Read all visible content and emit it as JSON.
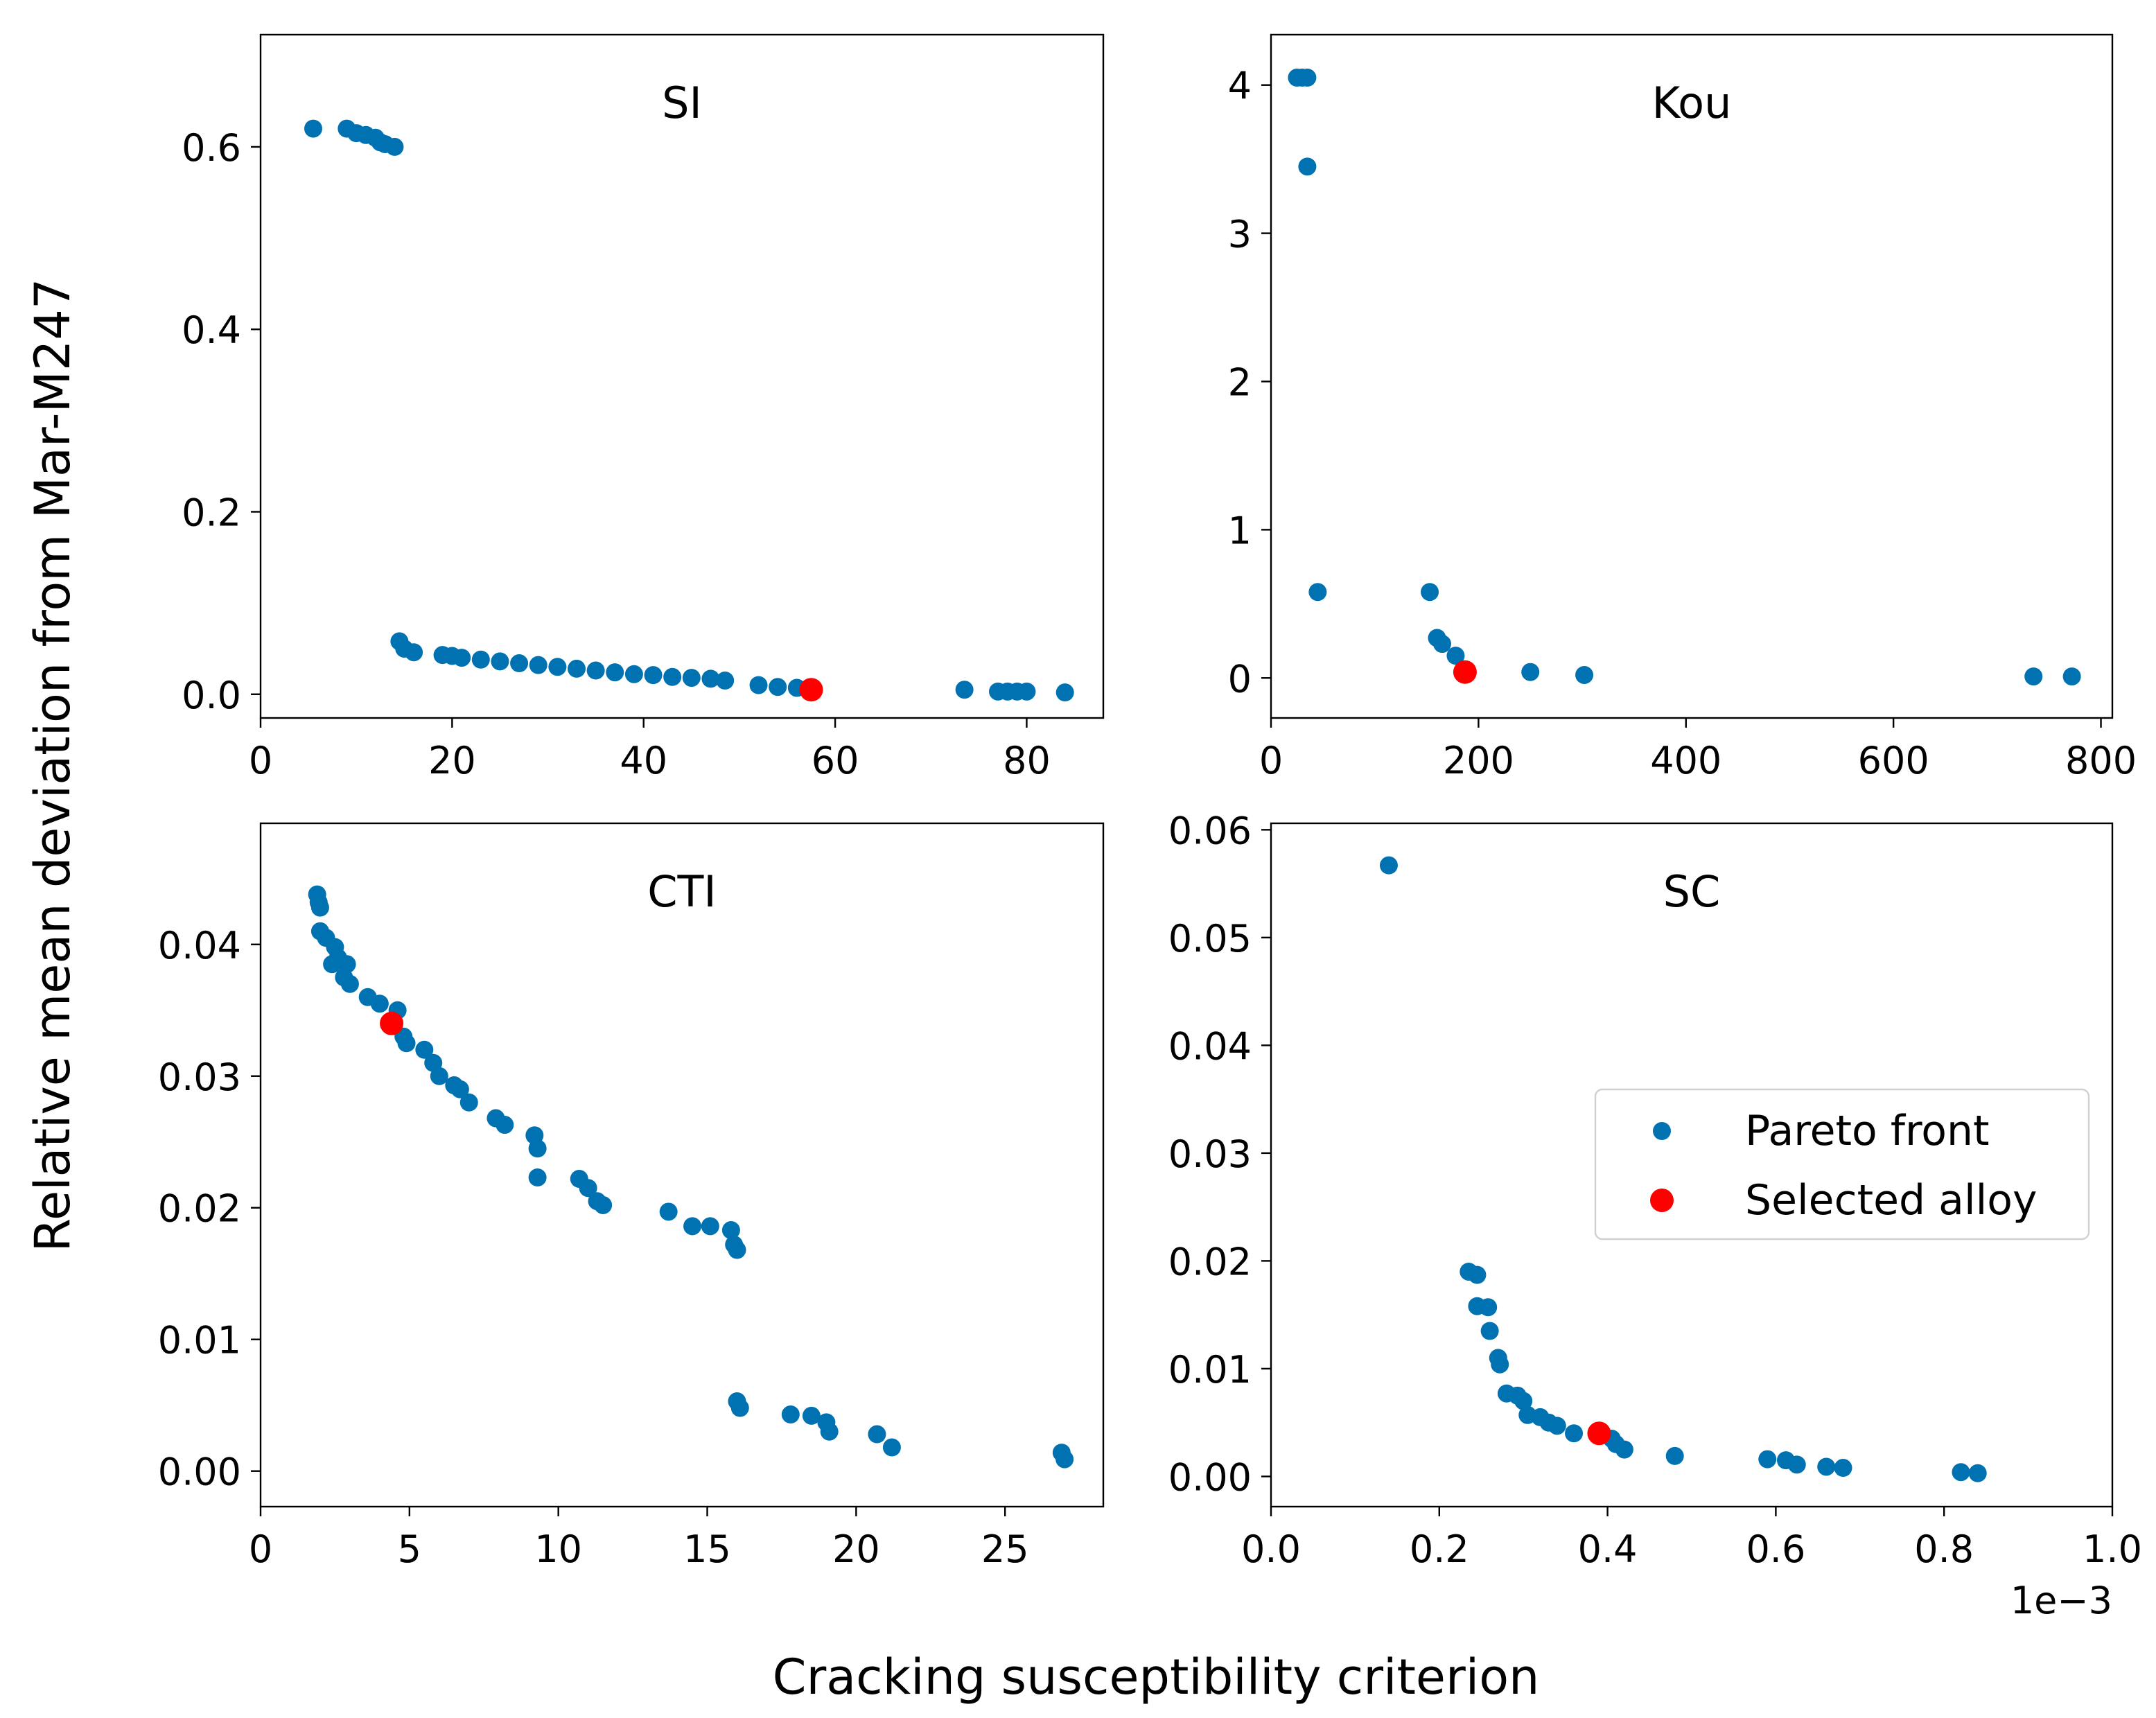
{
  "chart_data": {
    "type": "scatter",
    "ylabel": "Relative mean deviation from Mar-M247",
    "xlabel": "Cracking susceptibility criterion",
    "legend": {
      "placement": "center-right of SC panel",
      "entries": [
        {
          "label": "Pareto front",
          "color": "#0072b2"
        },
        {
          "label": "Selected alloy",
          "color": "#ff0000"
        }
      ]
    },
    "colors": {
      "pareto": "#0072b2",
      "selected": "#ff0000"
    },
    "panels": [
      {
        "title": "SI",
        "xlim": [
          0,
          88
        ],
        "ylim": [
          -0.026,
          0.723
        ],
        "xticks": [
          0,
          20,
          40,
          60,
          80
        ],
        "xtick_labels": [
          "0",
          "20",
          "40",
          "60",
          "80"
        ],
        "yticks": [
          0.0,
          0.2,
          0.4,
          0.6
        ],
        "ytick_labels": [
          "0.0",
          "0.2",
          "0.4",
          "0.6"
        ],
        "pareto": [
          [
            5.5,
            0.62
          ],
          [
            9,
            0.62
          ],
          [
            10,
            0.615
          ],
          [
            11,
            0.613
          ],
          [
            12,
            0.61
          ],
          [
            12.5,
            0.605
          ],
          [
            13,
            0.603
          ],
          [
            14,
            0.6
          ],
          [
            14.5,
            0.058
          ],
          [
            15,
            0.05
          ],
          [
            16,
            0.046
          ],
          [
            19,
            0.043
          ],
          [
            20,
            0.042
          ],
          [
            21,
            0.04
          ],
          [
            23,
            0.038
          ],
          [
            25,
            0.036
          ],
          [
            27,
            0.034
          ],
          [
            29,
            0.032
          ],
          [
            31,
            0.03
          ],
          [
            33,
            0.028
          ],
          [
            35,
            0.026
          ],
          [
            37,
            0.024
          ],
          [
            39,
            0.022
          ],
          [
            41,
            0.021
          ],
          [
            43,
            0.019
          ],
          [
            45,
            0.018
          ],
          [
            47,
            0.017
          ],
          [
            48.5,
            0.015
          ],
          [
            52,
            0.01
          ],
          [
            54,
            0.008
          ],
          [
            56,
            0.007
          ],
          [
            73.5,
            0.005
          ],
          [
            77,
            0.003
          ],
          [
            78,
            0.003
          ],
          [
            79,
            0.003
          ],
          [
            80,
            0.003
          ],
          [
            84,
            0.002
          ]
        ],
        "selected": [
          57.5,
          0.005
        ]
      },
      {
        "title": "Kou",
        "xlim": [
          0,
          811
        ],
        "ylim": [
          -0.27,
          4.34
        ],
        "xticks": [
          0,
          200,
          400,
          600,
          800
        ],
        "xtick_labels": [
          "0",
          "200",
          "400",
          "600",
          "800"
        ],
        "yticks": [
          0,
          1,
          2,
          3,
          4
        ],
        "ytick_labels": [
          "0",
          "1",
          "2",
          "3",
          "4"
        ],
        "pareto": [
          [
            25,
            4.05
          ],
          [
            30,
            4.05
          ],
          [
            35,
            4.05
          ],
          [
            35,
            3.45
          ],
          [
            45,
            0.58
          ],
          [
            153,
            0.58
          ],
          [
            160,
            0.27
          ],
          [
            165,
            0.23
          ],
          [
            178,
            0.15
          ],
          [
            250,
            0.04
          ],
          [
            302,
            0.02
          ],
          [
            735,
            0.01
          ],
          [
            772,
            0.01
          ]
        ],
        "selected": [
          187,
          0.04
        ]
      },
      {
        "title": "CTI",
        "xlim": [
          0,
          28.3
        ],
        "ylim": [
          -0.0027,
          0.0492
        ],
        "xticks": [
          0,
          5,
          10,
          15,
          20,
          25
        ],
        "xtick_labels": [
          "0",
          "5",
          "10",
          "15",
          "20",
          "25"
        ],
        "yticks": [
          0.0,
          0.01,
          0.02,
          0.03,
          0.04
        ],
        "ytick_labels": [
          "0.00",
          "0.01",
          "0.02",
          "0.03",
          "0.04"
        ],
        "pareto": [
          [
            1.9,
            0.0438
          ],
          [
            1.95,
            0.0432
          ],
          [
            2,
            0.0428
          ],
          [
            2,
            0.041
          ],
          [
            2.2,
            0.0405
          ],
          [
            2.5,
            0.0398
          ],
          [
            2.6,
            0.039
          ],
          [
            2.4,
            0.0385
          ],
          [
            2.9,
            0.0385
          ],
          [
            2.8,
            0.0375
          ],
          [
            3,
            0.037
          ],
          [
            3.6,
            0.036
          ],
          [
            4,
            0.0355
          ],
          [
            4.6,
            0.035
          ],
          [
            4.8,
            0.033
          ],
          [
            4.9,
            0.0325
          ],
          [
            5.5,
            0.032
          ],
          [
            5.8,
            0.031
          ],
          [
            6,
            0.03
          ],
          [
            6.5,
            0.0293
          ],
          [
            6.7,
            0.029
          ],
          [
            7,
            0.028
          ],
          [
            7.9,
            0.0268
          ],
          [
            8.2,
            0.0263
          ],
          [
            9.2,
            0.0255
          ],
          [
            9.3,
            0.0245
          ],
          [
            9.3,
            0.0223
          ],
          [
            10.7,
            0.0222
          ],
          [
            11,
            0.0215
          ],
          [
            11.3,
            0.0205
          ],
          [
            11.5,
            0.0202
          ],
          [
            13.7,
            0.0197
          ],
          [
            14.5,
            0.0186
          ],
          [
            15.1,
            0.0186
          ],
          [
            15.8,
            0.0183
          ],
          [
            15.9,
            0.0172
          ],
          [
            16,
            0.0168
          ],
          [
            16,
            0.0053
          ],
          [
            16.1,
            0.0048
          ],
          [
            17.8,
            0.0043
          ],
          [
            18.5,
            0.0042
          ],
          [
            19,
            0.0037
          ],
          [
            19.1,
            0.003
          ],
          [
            20.7,
            0.0028
          ],
          [
            21.2,
            0.0018
          ],
          [
            26.9,
            0.0014
          ],
          [
            27,
            0.0009
          ]
        ],
        "selected": [
          4.4,
          0.034
        ]
      },
      {
        "title": "SC",
        "xlim": [
          0,
          1.0
        ],
        "ylim": [
          -0.0028,
          0.0606
        ],
        "x_offset_label": "1e−3",
        "xticks": [
          0,
          0.2,
          0.4,
          0.6,
          0.8,
          1.0
        ],
        "xtick_labels": [
          "0.0",
          "0.2",
          "0.4",
          "0.6",
          "0.8",
          "1.0"
        ],
        "yticks": [
          0,
          0.01,
          0.02,
          0.03,
          0.04,
          0.05,
          0.06
        ],
        "ytick_labels": [
          "0.00",
          "0.01",
          "0.02",
          "0.03",
          "0.04",
          "0.05",
          "0.06"
        ],
        "pareto": [
          [
            0.14,
            0.0567
          ],
          [
            0.235,
            0.019
          ],
          [
            0.245,
            0.0187
          ],
          [
            0.245,
            0.0158
          ],
          [
            0.258,
            0.0157
          ],
          [
            0.26,
            0.0135
          ],
          [
            0.27,
            0.011
          ],
          [
            0.272,
            0.0104
          ],
          [
            0.28,
            0.0077
          ],
          [
            0.293,
            0.0075
          ],
          [
            0.3,
            0.007
          ],
          [
            0.305,
            0.0057
          ],
          [
            0.32,
            0.0055
          ],
          [
            0.33,
            0.005
          ],
          [
            0.34,
            0.0047
          ],
          [
            0.36,
            0.004
          ],
          [
            0.405,
            0.0035
          ],
          [
            0.41,
            0.003
          ],
          [
            0.42,
            0.0025
          ],
          [
            0.48,
            0.0019
          ],
          [
            0.59,
            0.0016
          ],
          [
            0.612,
            0.0015
          ],
          [
            0.625,
            0.0011
          ],
          [
            0.66,
            0.0009
          ],
          [
            0.68,
            0.0008
          ],
          [
            0.82,
            0.0004
          ],
          [
            0.84,
            0.0003
          ]
        ],
        "selected": [
          0.39,
          0.004
        ]
      }
    ]
  }
}
